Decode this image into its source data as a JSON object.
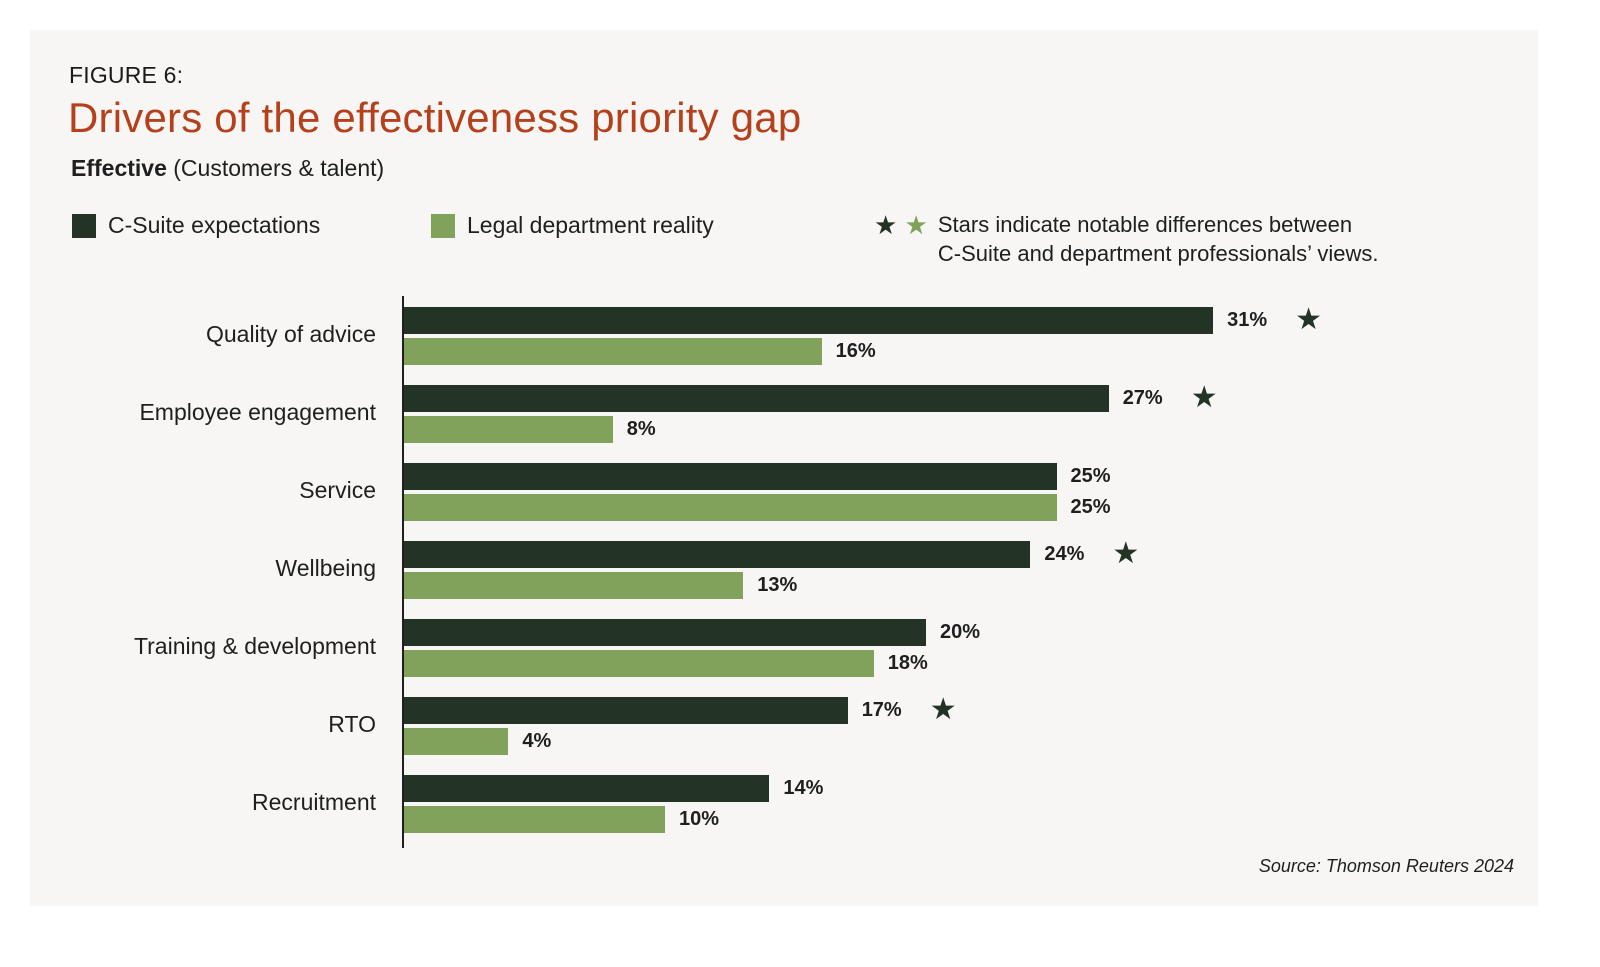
{
  "figure_label": "FIGURE 6:",
  "title": "Drivers of the effectiveness priority gap",
  "subtitle_bold": "Effective",
  "subtitle_rest": " (Customers & talent)",
  "legend": {
    "series1": "C-Suite expectations",
    "series2": "Legal department reality",
    "note_line1": "Stars indicate notable differences between",
    "note_line2": "C-Suite and department professionals’ views."
  },
  "colors": {
    "dark": "#233326",
    "light": "#81a25a",
    "title": "#b5411c"
  },
  "source": "Source: Thomson Reuters 2024",
  "chart_data": {
    "type": "bar",
    "orientation": "horizontal",
    "title": "Drivers of the effectiveness priority gap",
    "subtitle": "Effective (Customers & talent)",
    "categories": [
      "Quality of advice",
      "Employee engagement",
      "Service",
      "Wellbeing",
      "Training & development",
      "RTO",
      "Recruitment"
    ],
    "series": [
      {
        "name": "C-Suite expectations",
        "color": "#233326",
        "values": [
          31,
          27,
          25,
          24,
          20,
          17,
          14
        ]
      },
      {
        "name": "Legal department reality",
        "color": "#81a25a",
        "values": [
          16,
          8,
          25,
          13,
          18,
          4,
          10
        ]
      }
    ],
    "value_labels": {
      "C-Suite expectations": [
        "31%",
        "27%",
        "25%",
        "24%",
        "20%",
        "17%",
        "14%"
      ],
      "Legal department reality": [
        "16%",
        "8%",
        "25%",
        "13%",
        "18%",
        "4%",
        "10%"
      ]
    },
    "notable_difference_star": [
      true,
      true,
      false,
      true,
      false,
      true,
      false
    ],
    "unit": "%",
    "xlim": [
      0,
      35
    ],
    "grid": false,
    "legend_position": "top"
  }
}
